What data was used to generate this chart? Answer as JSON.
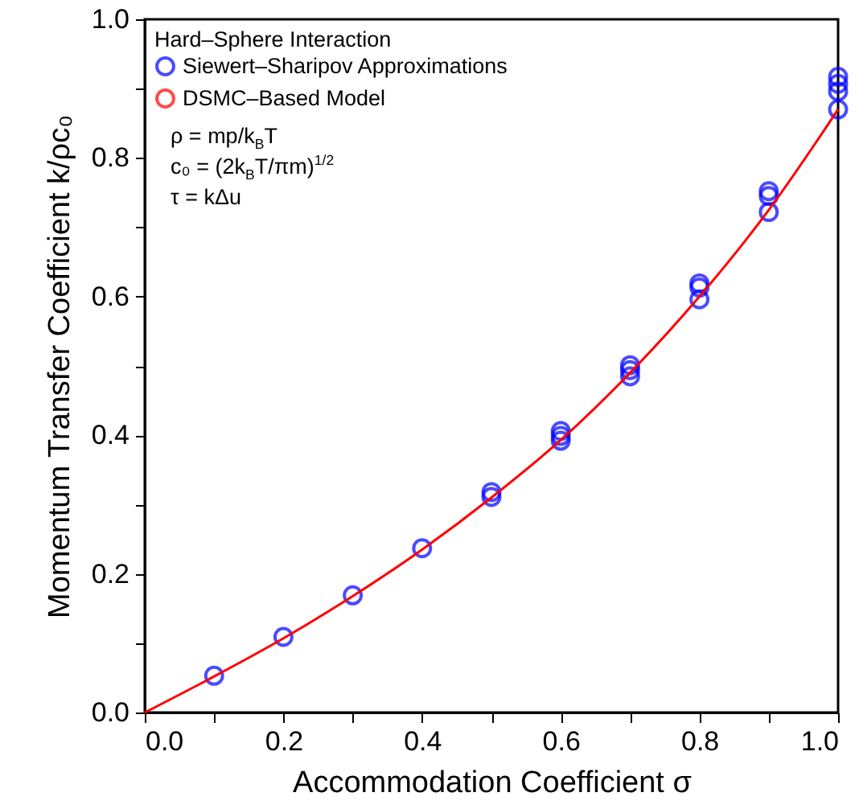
{
  "chart_data": {
    "type": "scatter",
    "xlabel": "Accommodation Coefficient σ",
    "ylabel": "Momentum Transfer Coefficient k/ρc₀",
    "legend_title": "Hard–Sphere Interaction",
    "legend": "top left",
    "grid": false,
    "annotations": [
      "ρ = mp/k$_{B}$T",
      "c₀ = (2k$_{B}$T/πm)$^{1/2}$",
      "τ = kΔu"
    ],
    "xlim": [
      0,
      1
    ],
    "ylim": [
      0,
      1
    ],
    "xticks": [
      {
        "value": 0,
        "label": "0.0"
      },
      {
        "value": 0.1,
        "label": null
      },
      {
        "value": 0.2,
        "label": "0.2"
      },
      {
        "value": 0.3,
        "label": null
      },
      {
        "value": 0.4,
        "label": "0.4"
      },
      {
        "value": 0.5,
        "label": null
      },
      {
        "value": 0.6,
        "label": "0.6"
      },
      {
        "value": 0.7,
        "label": null
      },
      {
        "value": 0.8,
        "label": "0.8"
      },
      {
        "value": 0.9,
        "label": null
      },
      {
        "value": 1,
        "label": "1.0"
      }
    ],
    "yticks": [
      {
        "value": 0,
        "label": "0.0"
      },
      {
        "value": 0.1,
        "label": null
      },
      {
        "value": 0.2,
        "label": "0.2"
      },
      {
        "value": 0.3,
        "label": null
      },
      {
        "value": 0.4,
        "label": "0.4"
      },
      {
        "value": 0.5,
        "label": null
      },
      {
        "value": 0.6,
        "label": "0.6"
      },
      {
        "value": 0.7,
        "label": null
      },
      {
        "value": 0.8,
        "label": "0.8"
      },
      {
        "value": 0.9,
        "label": null
      },
      {
        "value": 1,
        "label": "1.0"
      }
    ],
    "series": [
      {
        "name": "Siewert–Sharipov Approximations",
        "marker": "circle",
        "color": "#0000ff",
        "x": [
          0.1,
          0.2,
          0.3,
          0.4,
          0.5,
          0.5,
          0.6,
          0.6,
          0.6,
          0.7,
          0.7,
          0.7,
          0.8,
          0.8,
          0.8,
          0.9,
          0.9,
          0.9,
          1,
          1,
          1,
          1
        ],
        "values": [
          0.053,
          0.109,
          0.169,
          0.237,
          0.318,
          0.311,
          0.406,
          0.399,
          0.392,
          0.501,
          0.494,
          0.485,
          0.619,
          0.613,
          0.596,
          0.752,
          0.745,
          0.722,
          0.917,
          0.907,
          0.896,
          0.87
        ]
      },
      {
        "name": "DSMC–Based Model",
        "type": "line",
        "color": "#ff0000",
        "x": [
          0,
          0.1,
          0.2,
          0.3,
          0.4,
          0.5,
          0.6,
          0.7,
          0.8,
          0.9,
          1
        ],
        "values": [
          0,
          0.052,
          0.107,
          0.168,
          0.235,
          0.31,
          0.393,
          0.49,
          0.6,
          0.725,
          0.87
        ]
      }
    ]
  }
}
